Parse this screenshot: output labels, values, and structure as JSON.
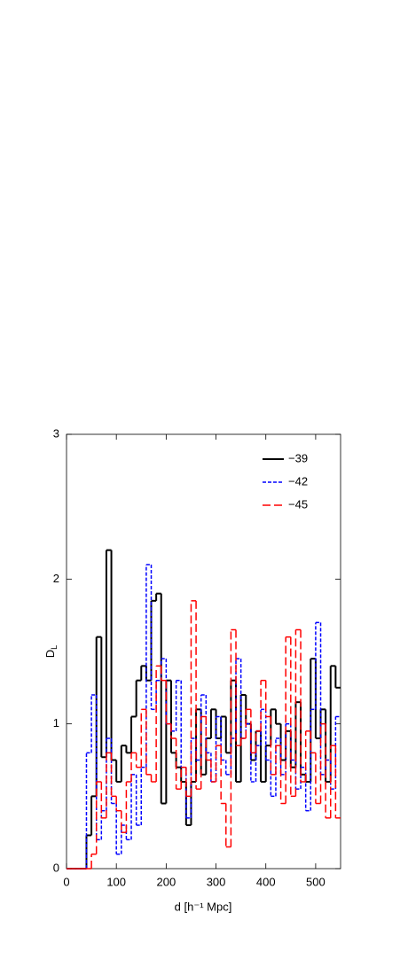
{
  "chart_data": {
    "type": "histogram",
    "x_label": "d [h⁻¹ Mpc]",
    "y_label": {
      "base": "D",
      "sub": "L"
    },
    "bins": [
      0,
      10,
      20,
      30,
      40,
      50,
      60,
      70,
      80,
      90,
      100,
      110,
      120,
      130,
      140,
      150,
      160,
      170,
      180,
      190,
      200,
      210,
      220,
      230,
      240,
      250,
      260,
      270,
      280,
      290,
      300,
      310,
      320,
      330,
      340,
      350,
      360,
      370,
      380,
      390,
      400,
      410,
      420,
      430,
      440,
      450,
      460,
      470,
      480,
      490,
      500,
      510,
      520,
      530,
      540,
      550
    ],
    "series": [
      {
        "name": "−39",
        "color": "#000000",
        "dash": "none",
        "width": 2,
        "values": [
          0,
          0,
          0,
          0,
          0.23,
          0.5,
          1.6,
          0.77,
          2.2,
          0.75,
          0.6,
          0.85,
          0.8,
          1.05,
          1.3,
          1.4,
          1.3,
          1.85,
          1.9,
          0.45,
          1.3,
          0.8,
          0.7,
          0.6,
          0.3,
          0.6,
          1.1,
          0.65,
          0.9,
          1.1,
          0.9,
          1.05,
          0.8,
          1.3,
          0.6,
          1.2,
          1.0,
          0.75,
          0.95,
          0.6,
          0.85,
          1.1,
          1.0,
          0.75,
          0.95,
          0.7,
          1.15,
          0.65,
          0.6,
          1.45,
          0.9,
          1.1,
          0.6,
          1.4,
          1.25
        ]
      },
      {
        "name": "−42",
        "color": "#0000ff",
        "dash": "4,2",
        "width": 1.5,
        "values": [
          0,
          0,
          0,
          0,
          0.8,
          1.2,
          0.2,
          0.4,
          0.9,
          0.45,
          0.1,
          0.3,
          0.2,
          0.65,
          0.3,
          0.7,
          2.1,
          1.1,
          1.3,
          1.45,
          1.0,
          0.95,
          1.3,
          0.7,
          0.35,
          0.9,
          0.75,
          1.2,
          0.8,
          0.6,
          1.05,
          0.75,
          0.65,
          0.9,
          1.45,
          0.9,
          1.0,
          0.6,
          0.85,
          1.1,
          0.75,
          0.5,
          0.9,
          0.65,
          1.0,
          0.75,
          0.55,
          0.7,
          0.4,
          1.1,
          1.7,
          0.65,
          0.75,
          0.55,
          1.05
        ]
      },
      {
        "name": "−45",
        "color": "#ff0000",
        "dash": "9,4",
        "width": 1.5,
        "values": [
          0,
          0,
          0,
          0,
          0,
          0.1,
          0.6,
          0.35,
          0.8,
          0.5,
          0.4,
          0.25,
          0.6,
          0.8,
          0.7,
          1.1,
          0.65,
          0.6,
          1.4,
          1.3,
          1.0,
          0.9,
          0.55,
          0.7,
          0.5,
          1.85,
          0.55,
          1.05,
          0.75,
          0.6,
          0.85,
          0.45,
          0.15,
          1.65,
          0.85,
          0.9,
          1.1,
          0.8,
          0.95,
          1.3,
          1.05,
          0.65,
          0.85,
          0.45,
          1.6,
          0.5,
          1.65,
          0.6,
          0.95,
          0.8,
          0.45,
          1.0,
          0.35,
          0.85,
          0.35
        ]
      }
    ],
    "xlim": [
      0,
      550
    ],
    "xticks": [
      0,
      100,
      200,
      300,
      400,
      500
    ],
    "ylim": [
      0,
      3
    ],
    "yticks": [
      0,
      1,
      2,
      3
    ],
    "legend": "top-right"
  }
}
